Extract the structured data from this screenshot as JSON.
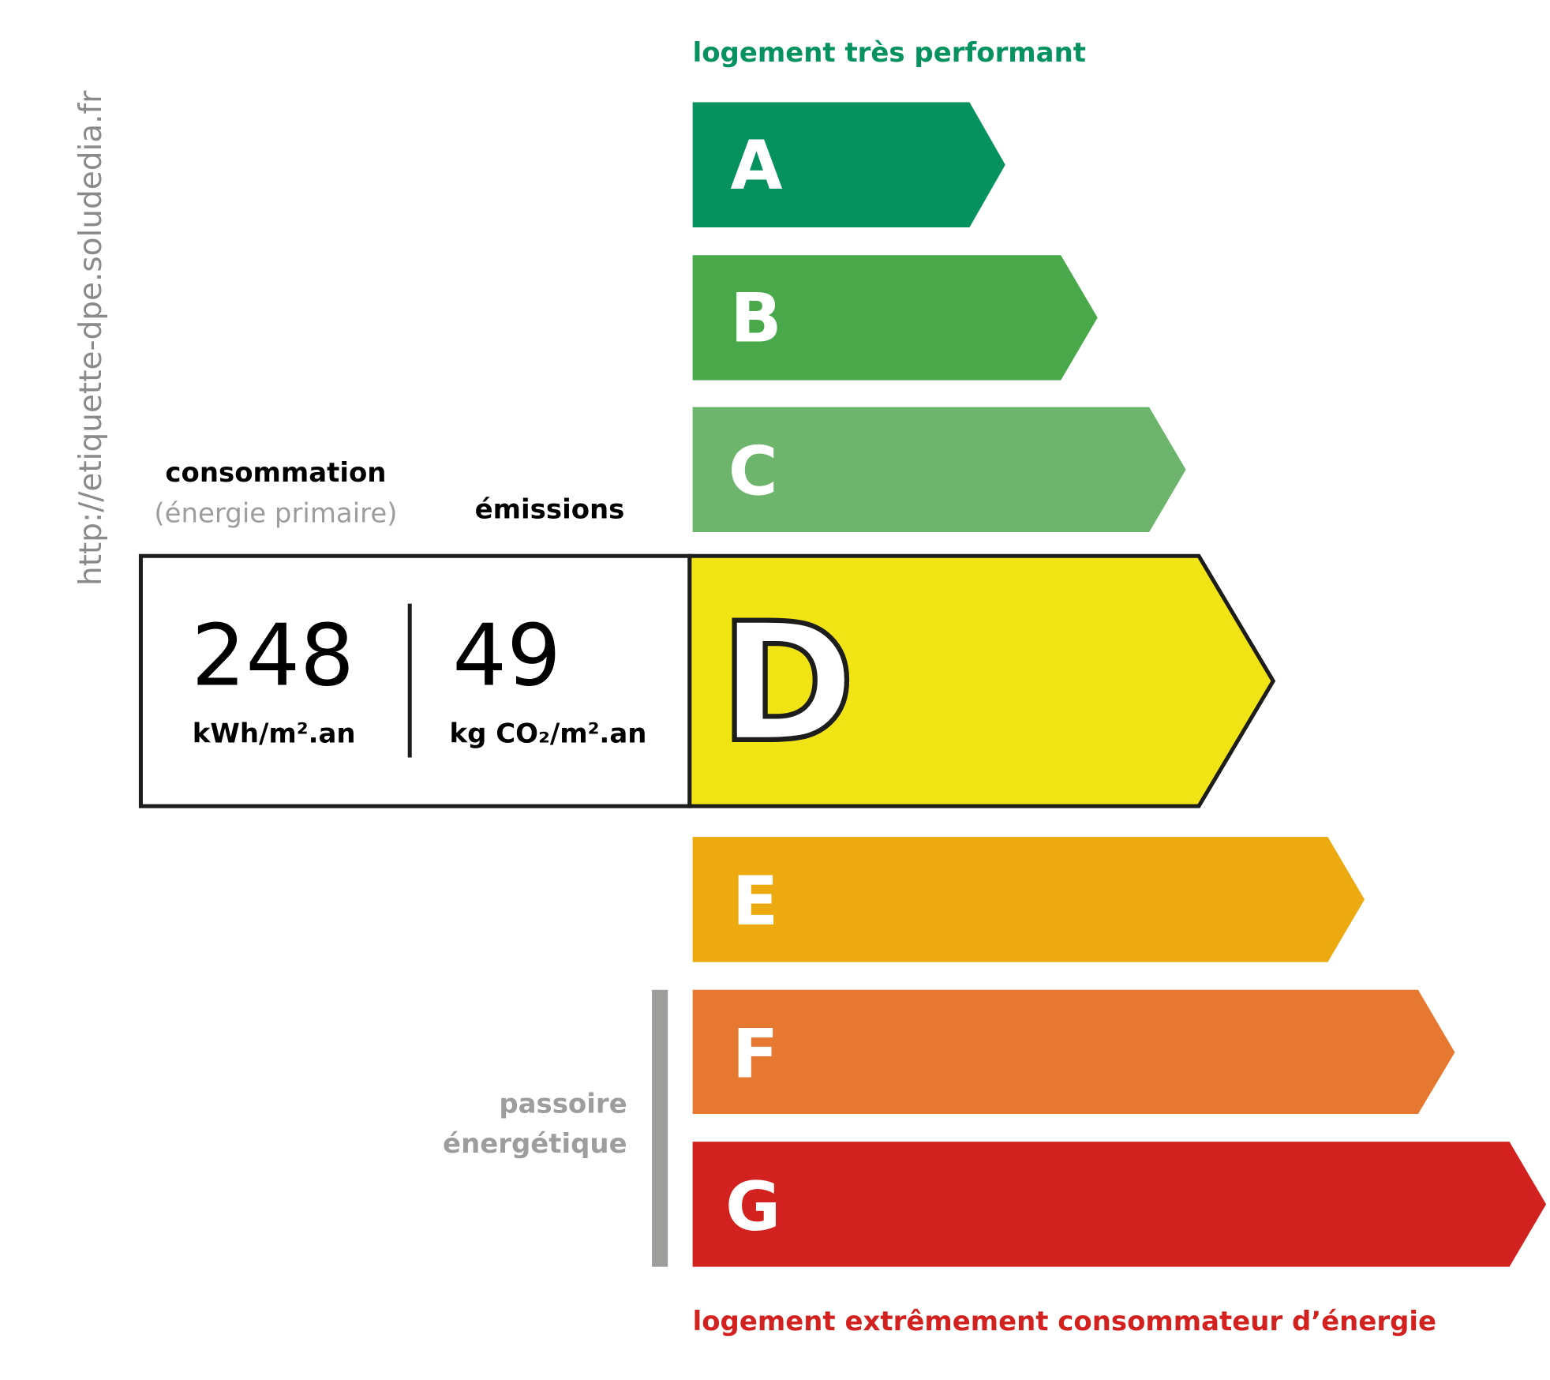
{
  "header": {
    "top_label": "logement très performant",
    "bottom_label": "logement extrêmement consommateur d’énergie"
  },
  "side_url": "http://etiquette-dpe.soludedia.fr",
  "consumption": {
    "title": "consommation",
    "subtitle": "(énergie primaire)",
    "value": "248",
    "unit": "kWh/m².an"
  },
  "emissions": {
    "title": "émissions",
    "value": "49",
    "unit": "kg CO₂/m².an"
  },
  "current_class": "D",
  "passoire": {
    "line1": "passoire",
    "line2": "énergétique"
  },
  "classes": [
    {
      "letter": "A",
      "color": "#05925f"
    },
    {
      "letter": "B",
      "color": "#48a84a"
    },
    {
      "letter": "C",
      "color": "#6db56c"
    },
    {
      "letter": "D",
      "color": "#f1e415"
    },
    {
      "letter": "E",
      "color": "#ecaa10"
    },
    {
      "letter": "F",
      "color": "#e77831"
    },
    {
      "letter": "G",
      "color": "#d3211f"
    }
  ],
  "colors": {
    "top_label": "#05925f",
    "bottom_label": "#d3211f",
    "gray": "#9d9d9c"
  }
}
